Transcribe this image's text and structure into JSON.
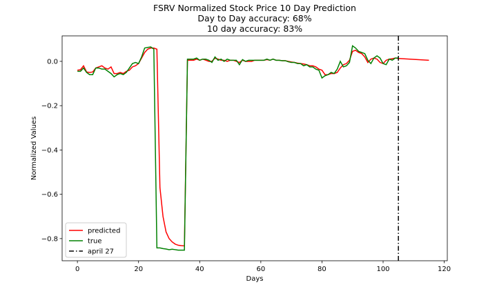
{
  "chart_data": {
    "type": "line",
    "title": [
      "FSRV Normalized Stock Price 10 Day Prediction",
      "Day to Day accuracy: 68%",
      "10 day accuracy: 83%"
    ],
    "xlabel": "Days",
    "ylabel": "Normalized Values",
    "xlim": [
      -5,
      121
    ],
    "ylim": [
      -0.9,
      0.115
    ],
    "xticks": [
      0,
      20,
      40,
      60,
      80,
      100,
      120
    ],
    "yticks": [
      0.0,
      -0.2,
      -0.4,
      -0.6,
      -0.8
    ],
    "ytick_labels": [
      "0.0",
      "−0.2",
      "−0.4",
      "−0.6",
      "−0.8"
    ],
    "legend_position": "lower-left",
    "vline": {
      "x": 105,
      "name": "april 27",
      "color": "#000000",
      "style": "dashdot"
    },
    "series": [
      {
        "name": "predicted",
        "color": "#ff0000",
        "x": [
          0,
          1,
          2,
          3,
          4,
          5,
          6,
          7,
          8,
          9,
          10,
          11,
          12,
          13,
          14,
          15,
          16,
          17,
          18,
          19,
          20,
          21,
          22,
          23,
          24,
          25,
          26,
          27,
          28,
          29,
          30,
          31,
          32,
          33,
          34,
          35,
          36,
          37,
          38,
          39,
          40,
          41,
          42,
          43,
          44,
          45,
          46,
          47,
          48,
          49,
          50,
          51,
          52,
          53,
          54,
          55,
          56,
          57,
          58,
          59,
          60,
          61,
          62,
          63,
          64,
          65,
          66,
          67,
          68,
          69,
          70,
          71,
          72,
          73,
          74,
          75,
          76,
          77,
          78,
          79,
          80,
          81,
          82,
          83,
          84,
          85,
          86,
          87,
          88,
          89,
          90,
          91,
          92,
          93,
          94,
          95,
          96,
          97,
          98,
          99,
          100,
          101,
          102,
          103,
          104,
          105,
          115
        ],
        "values": [
          -0.04,
          -0.038,
          -0.02,
          -0.048,
          -0.05,
          -0.048,
          -0.03,
          -0.025,
          -0.02,
          -0.03,
          -0.035,
          -0.025,
          -0.055,
          -0.055,
          -0.05,
          -0.055,
          -0.045,
          -0.04,
          -0.025,
          -0.02,
          -0.01,
          0.015,
          0.04,
          0.055,
          0.06,
          0.06,
          0.055,
          -0.57,
          -0.7,
          -0.77,
          -0.8,
          -0.815,
          -0.825,
          -0.83,
          -0.832,
          -0.833,
          0.005,
          0.005,
          0.005,
          0.01,
          0.005,
          0.01,
          0.005,
          0.0,
          0.0,
          0.015,
          0.01,
          0.005,
          0.005,
          0.0,
          0.005,
          0.005,
          0.0,
          -0.005,
          0.005,
          0.0,
          0.0,
          0.0,
          0.005,
          0.005,
          0.005,
          0.005,
          0.008,
          0.005,
          0.01,
          0.005,
          0.005,
          0.003,
          0.003,
          0.0,
          -0.003,
          -0.005,
          -0.008,
          -0.01,
          -0.012,
          -0.015,
          -0.02,
          -0.02,
          -0.025,
          -0.035,
          -0.04,
          -0.06,
          -0.06,
          -0.055,
          -0.055,
          -0.05,
          -0.03,
          -0.015,
          -0.01,
          0.005,
          0.045,
          0.05,
          0.04,
          0.035,
          0.02,
          -0.005,
          0.01,
          0.015,
          0.01,
          -0.005,
          -0.01,
          0.005,
          0.01,
          0.012,
          0.015,
          0.013,
          0.005
        ]
      },
      {
        "name": "true",
        "color": "#008000",
        "x": [
          0,
          1,
          2,
          3,
          4,
          5,
          6,
          7,
          8,
          9,
          10,
          11,
          12,
          13,
          14,
          15,
          16,
          17,
          18,
          19,
          20,
          21,
          22,
          23,
          24,
          25,
          26,
          27,
          28,
          29,
          30,
          31,
          32,
          33,
          34,
          35,
          36,
          37,
          38,
          39,
          40,
          41,
          42,
          43,
          44,
          45,
          46,
          47,
          48,
          49,
          50,
          51,
          52,
          53,
          54,
          55,
          56,
          57,
          58,
          59,
          60,
          61,
          62,
          63,
          64,
          65,
          66,
          67,
          68,
          69,
          70,
          71,
          72,
          73,
          74,
          75,
          76,
          77,
          78,
          79,
          80,
          81,
          82,
          83,
          84,
          85,
          86,
          87,
          88,
          89,
          90,
          91,
          92,
          93,
          94,
          95,
          96,
          97,
          98,
          99,
          100,
          101,
          102,
          103,
          104,
          105
        ],
        "values": [
          -0.045,
          -0.045,
          -0.03,
          -0.05,
          -0.06,
          -0.06,
          -0.03,
          -0.03,
          -0.035,
          -0.035,
          -0.045,
          -0.055,
          -0.07,
          -0.06,
          -0.055,
          -0.06,
          -0.05,
          -0.03,
          -0.01,
          -0.005,
          -0.01,
          0.02,
          0.06,
          0.063,
          0.065,
          0.055,
          -0.842,
          -0.842,
          -0.845,
          -0.847,
          -0.85,
          -0.848,
          -0.85,
          -0.852,
          -0.852,
          -0.852,
          0.01,
          0.01,
          0.01,
          0.015,
          0.005,
          0.01,
          0.01,
          0.005,
          -0.005,
          0.02,
          0.005,
          0.01,
          0.0,
          0.01,
          0.005,
          0.005,
          0.005,
          -0.015,
          0.008,
          0.0,
          0.005,
          0.005,
          0.005,
          0.005,
          0.005,
          0.005,
          0.01,
          0.005,
          0.01,
          0.005,
          0.005,
          0.003,
          0.003,
          -0.002,
          -0.005,
          -0.005,
          -0.01,
          -0.01,
          -0.02,
          -0.015,
          -0.025,
          -0.025,
          -0.035,
          -0.04,
          -0.075,
          -0.065,
          -0.06,
          -0.05,
          -0.055,
          -0.035,
          0.0,
          -0.025,
          -0.02,
          -0.005,
          0.07,
          0.06,
          0.045,
          0.04,
          0.035,
          0.005,
          -0.01,
          0.015,
          0.025,
          0.015,
          -0.01,
          -0.015,
          0.01,
          0.005,
          0.015,
          0.015
        ]
      }
    ]
  }
}
